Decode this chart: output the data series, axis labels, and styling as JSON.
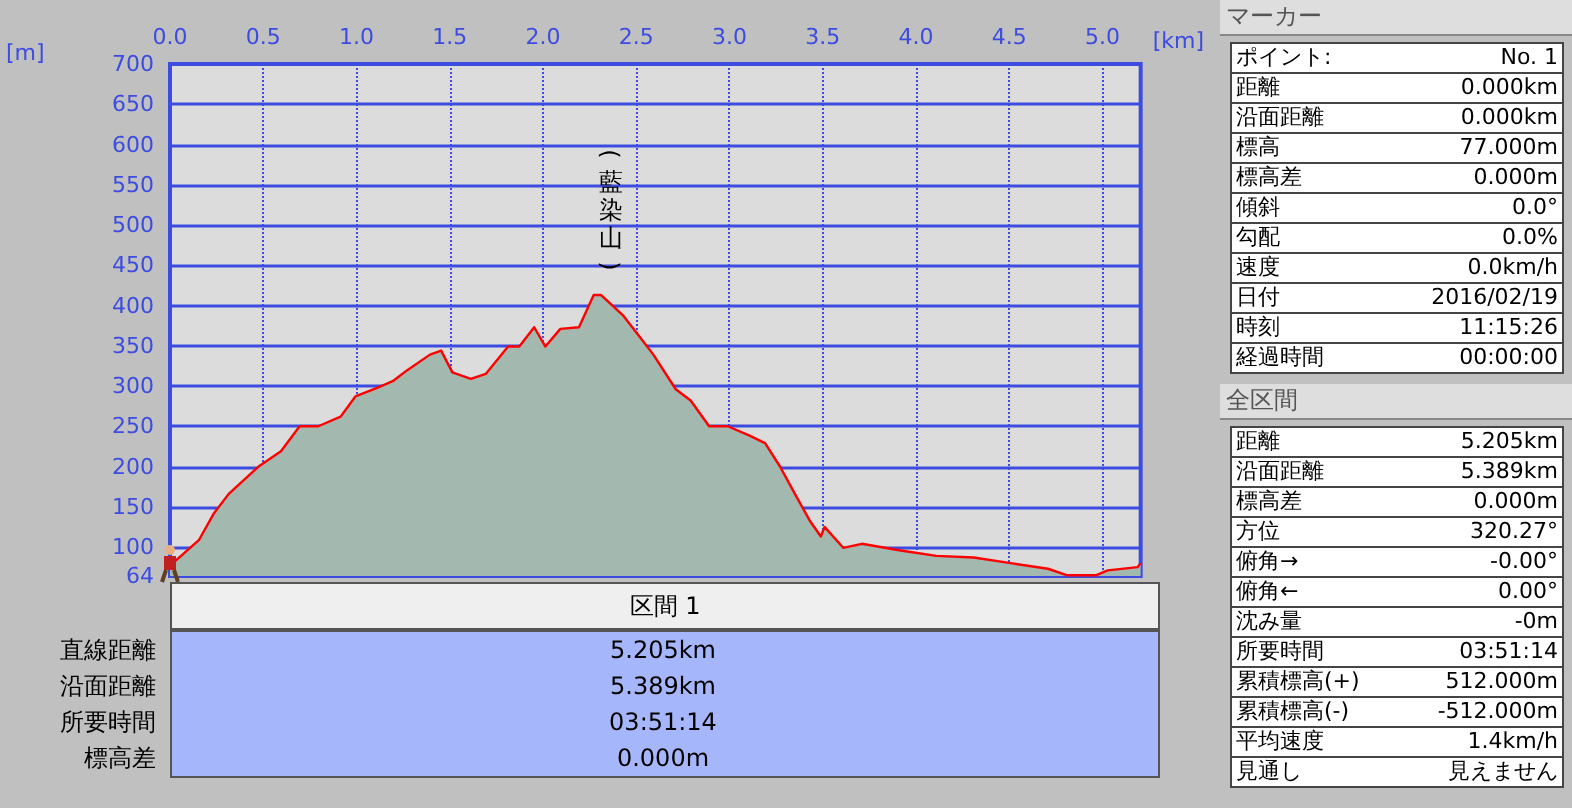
{
  "chart_data": [
    {
      "type": "area",
      "xlabel": "[km]",
      "ylabel": "[m]",
      "color": "#a3b8ae",
      "grid": true,
      "x": [
        0,
        0.156,
        0.236,
        0.315,
        0.475,
        0.595,
        0.695,
        0.795,
        0.915,
        0.994,
        1.114,
        1.194,
        1.274,
        1.394,
        1.454,
        1.514,
        1.613,
        1.693,
        1.813,
        1.873,
        1.953,
        2.013,
        2.093,
        2.193,
        2.272,
        2.312,
        2.432,
        2.512,
        2.592,
        2.712,
        2.792,
        2.891,
        2.991,
        3.111,
        3.191,
        3.271,
        3.351,
        3.43,
        3.49,
        3.51,
        3.61,
        3.71,
        3.909,
        4.109,
        4.309,
        4.508,
        4.708,
        4.808,
        4.968,
        5.028,
        5.188,
        5.205
      ],
      "values": [
        77,
        109,
        142,
        166,
        200,
        219,
        250,
        250,
        262,
        287,
        298,
        306,
        320,
        339,
        344,
        317,
        309,
        315,
        349,
        349,
        373,
        349,
        371,
        373,
        413,
        413,
        387,
        363,
        339,
        296,
        282,
        250,
        250,
        238,
        229,
        200,
        166,
        133,
        113,
        125,
        99,
        104,
        96,
        89,
        87,
        80,
        73,
        65,
        65,
        71,
        75,
        80
      ],
      "xlim": [
        0,
        5.205
      ],
      "xticks": [
        {
          "value": 0,
          "label": "0.0"
        },
        0.5,
        {
          "value": 1,
          "label": "1.0"
        },
        1.5,
        {
          "value": 2,
          "label": "2.0"
        },
        2.5,
        {
          "value": 3,
          "label": "3.0"
        },
        3.5,
        {
          "value": 4,
          "label": "4.0"
        },
        4.5,
        {
          "value": 5,
          "label": "5.0"
        }
      ],
      "ylim": [
        64,
        700
      ],
      "yticks": [
        64,
        100,
        150,
        200,
        250,
        300,
        350,
        400,
        450,
        500,
        550,
        600,
        650,
        700
      ],
      "annotations": [
        {
          "text": "(藍染山)",
          "x": 2.29,
          "y": 413
        }
      ]
    },
    {
      "type": "other",
      "title": "区間 1",
      "annotations": [
        "直線距離",
        "5.205km",
        "沿面距離",
        "5.389km",
        "所要時間",
        "03:51:14",
        "標高差",
        "0.000m"
      ]
    },
    {
      "type": "other",
      "title": "マーカー",
      "annotations": [
        "ポイント:",
        "No. 1",
        "距離",
        "0.000km",
        "沿面距離",
        "0.000km",
        "標高",
        "77.000m",
        "標高差",
        "0.000m",
        "傾斜",
        "0.0°",
        "勾配",
        "0.0%",
        "速度",
        "0.0km/h",
        "日付",
        "2016/02/19",
        "時刻",
        "11:15:26",
        "経過時間",
        "00:00:00"
      ]
    },
    {
      "type": "other",
      "title": "全区間",
      "annotations": [
        "距離",
        "5.205km",
        "沿面距離",
        "5.389km",
        "標高差",
        "0.000m",
        "方位",
        "320.27°",
        "俯角→",
        "-0.00°",
        "俯角←",
        "0.00°",
        "沈み量",
        "-0m",
        "所要時間",
        "03:51:14",
        "累積標高(+)",
        "512.000m",
        "累積標高(-)",
        "-512.000m",
        "平均速度",
        "1.4km/h",
        "見通し",
        "見えません"
      ]
    }
  ]
}
